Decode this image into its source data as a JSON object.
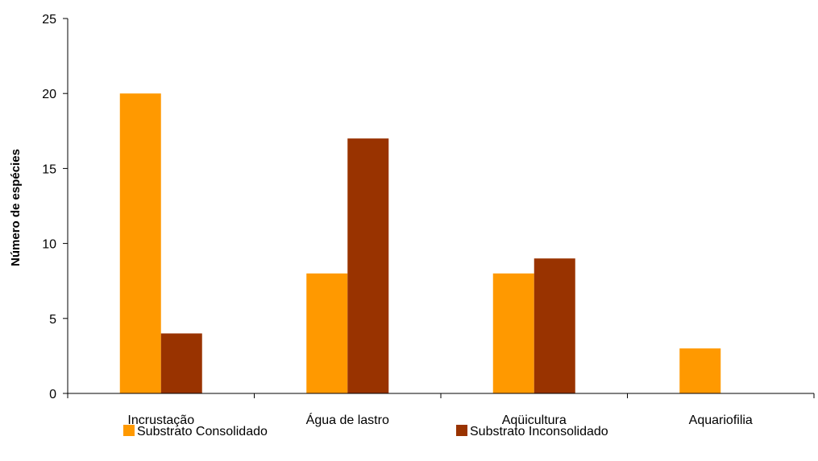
{
  "chart_data": {
    "type": "bar",
    "title": "",
    "xlabel": "",
    "ylabel": "Número de espécies",
    "ylim": [
      0,
      25
    ],
    "yticks": [
      0,
      5,
      10,
      15,
      20,
      25
    ],
    "grid": false,
    "legend_position": "bottom",
    "categories": [
      "Incrustação",
      "Água de lastro",
      "Aqüicultura",
      "Aquariofilia"
    ],
    "series": [
      {
        "name": "Substrato Consolidado",
        "color": "#FF9900",
        "values": [
          20,
          8,
          8,
          3
        ]
      },
      {
        "name": "Substrato Inconsolidado",
        "color": "#993300",
        "values": [
          4,
          17,
          9,
          0
        ]
      }
    ]
  }
}
